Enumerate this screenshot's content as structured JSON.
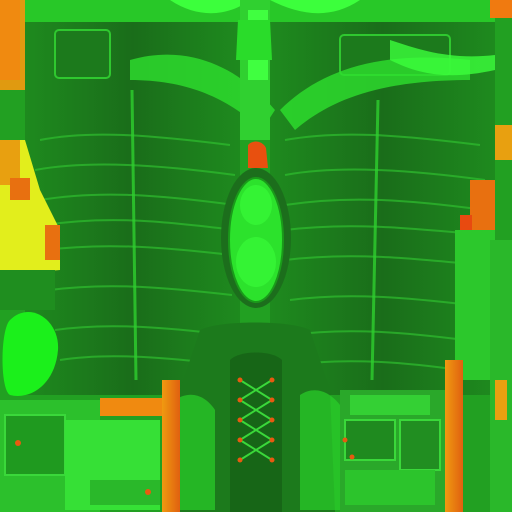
{
  "image": {
    "kind": "uv-texture-atlas",
    "subject": "jeans-and-boot",
    "colors": {
      "base_dark": "#1d6b1d",
      "base_mid": "#2e9a2e",
      "bright_green": "#1bea1b",
      "lime": "#3cff3c",
      "yellow": "#e6f21a",
      "orange": "#f07a10",
      "red_orange": "#e84a10"
    }
  }
}
